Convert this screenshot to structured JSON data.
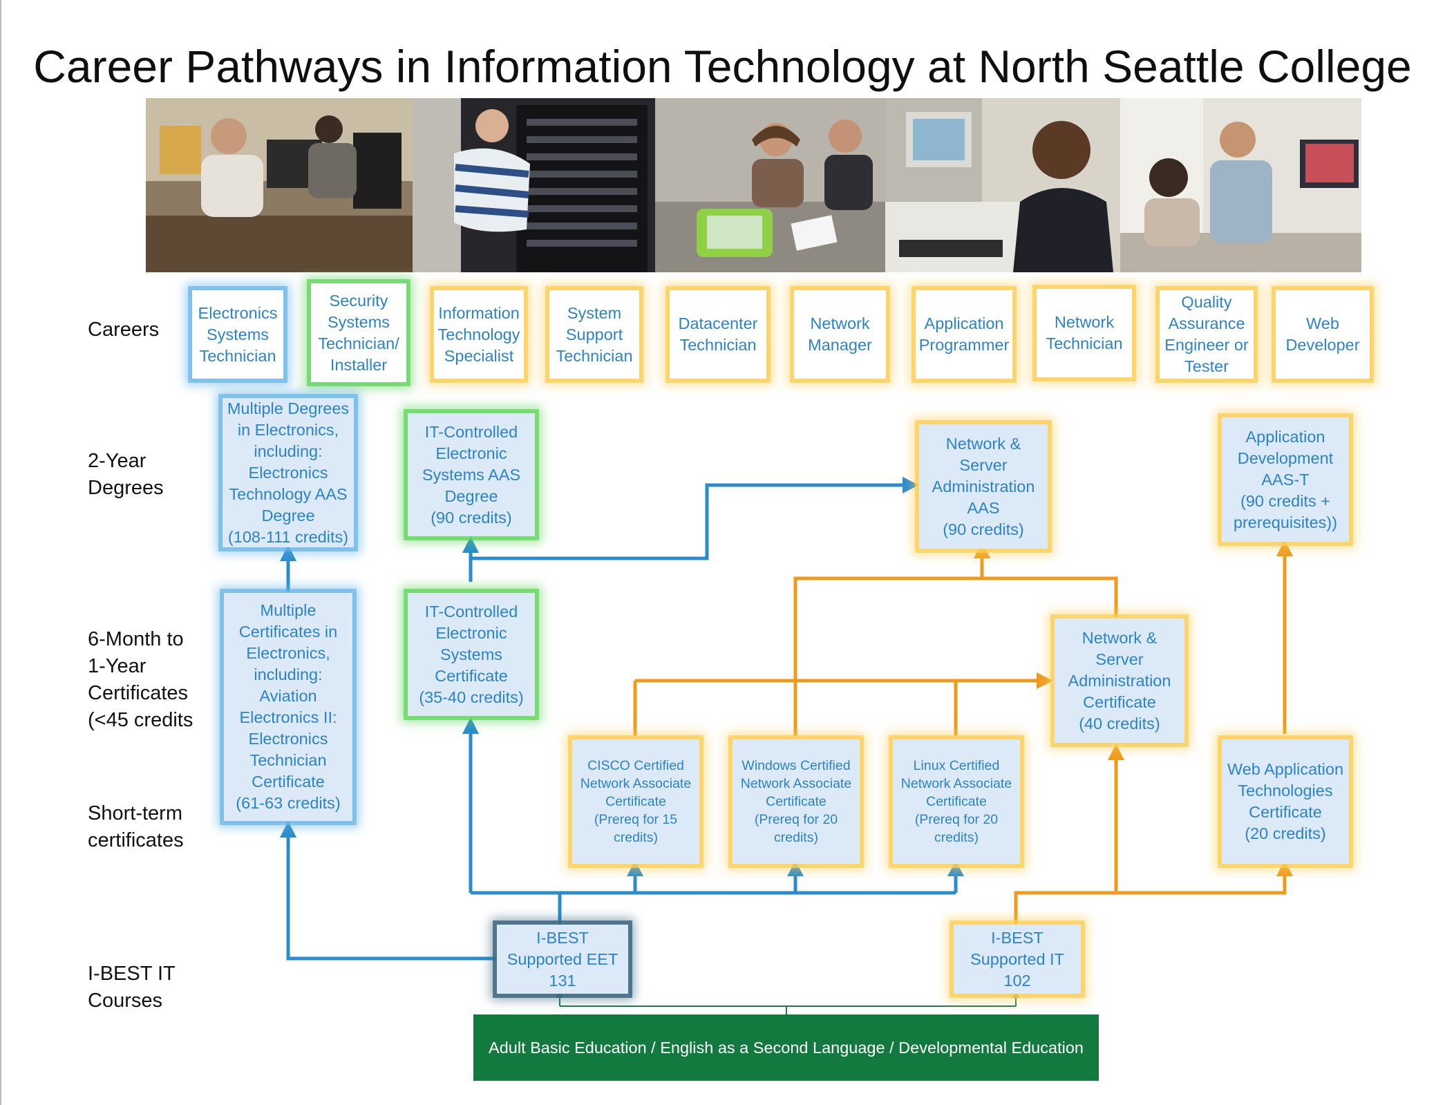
{
  "title": "Career Pathways in Information Technology at North Seattle College",
  "row_labels": {
    "careers": "Careers",
    "degrees": "2-Year\nDegrees",
    "certificates": "6-Month to\n1-Year\nCertificates\n(<45 credits",
    "short_term": "Short-term\ncertificates",
    "ibest": "I-BEST IT\nCourses"
  },
  "careers": [
    "Electronics\nSystems\nTechnician",
    "Security\nSystems\nTechnician/\nInstaller",
    "Information\nTechnology\nSpecialist",
    "System\nSupport\nTechnician",
    "Datacenter\nTechnician",
    "Network\nManager",
    "Application\nProgrammer",
    "Network\nTechnician",
    "Quality\nAssurance\nEngineer or\nTester",
    "Web\nDeveloper"
  ],
  "degrees": {
    "electronics": "Multiple Degrees\nin Electronics,\nincluding:\nElectronics\nTechnology AAS\nDegree\n(108-111 credits)",
    "it_controlled": "IT-Controlled\nElectronic\nSystems AAS\nDegree\n(90 credits)",
    "network_server": "Network &\nServer\nAdministration\nAAS\n(90 credits)",
    "app_dev": "Application\nDevelopment\nAAS-T\n(90 credits +\nprerequisites))"
  },
  "certificates": {
    "electronics": "Multiple\nCertificates in\nElectronics,\nincluding:\nAviation\nElectronics II:\nElectronics\nTechnician\nCertificate\n(61-63 credits)",
    "it_controlled": "IT-Controlled\nElectronic\nSystems\nCertificate\n(35-40 credits)",
    "network_server": "Network &\nServer\nAdministration\nCertificate\n(40 credits)"
  },
  "short_term": {
    "cisco": "CISCO Certified\nNetwork Associate\nCertificate\n(Prereq for 15\ncredits)",
    "windows": "Windows  Certified\nNetwork Associate\nCertificate\n(Prereq for 20\ncredits)",
    "linux": "Linux  Certified\nNetwork Associate\nCertificate\n(Prereq for 20\ncredits)",
    "web_app": "Web Application\nTechnologies\nCertificate\n(20 credits)"
  },
  "ibest": {
    "eet": "I-BEST\nSupported EET\n131",
    "it": "I-BEST\nSupported IT\n102"
  },
  "foundation": "Adult Basic Education / English as a Second Language / Developmental Education",
  "colors": {
    "blue_arrow": "#2a8ccc",
    "orange_arrow": "#ee9a1f",
    "green_arrow": "#1e7a48",
    "box_text": "#2c83c6",
    "box_fill": "#dce9f6",
    "foundation_fill": "#137a3f"
  },
  "photos": [
    "students-at-computers-photo",
    "technician-server-rack-photo",
    "students-with-laptop-photo",
    "student-portrait-photo",
    "team-at-monitor-photo"
  ]
}
